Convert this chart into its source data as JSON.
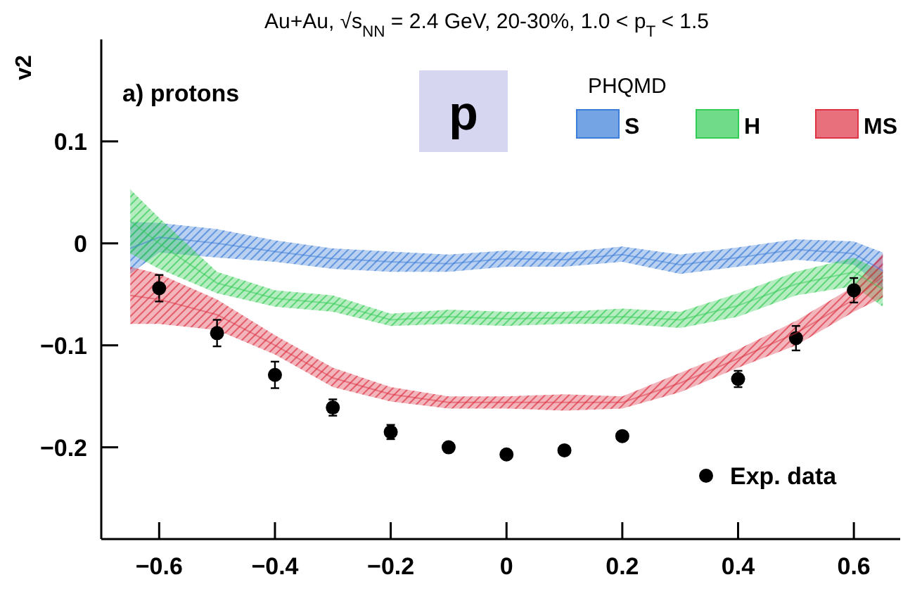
{
  "chart_data": {
    "type": "line",
    "title": "Au+Au, √s$_{NN}$ = 2.4 GeV, 20-30%, 1.0 < p$_{T}$ < 1.5",
    "ylabel": "v2",
    "legend_title": "PHQMD",
    "legend": "right",
    "annotations": [
      "a) protons",
      "p"
    ],
    "xlim": [
      -0.7,
      0.68
    ],
    "ylim": [
      -0.29,
      0.2
    ],
    "xticks": [
      {
        "value": -0.6,
        "label": "−0.6"
      },
      {
        "value": -0.4,
        "label": "−0.4"
      },
      {
        "value": -0.2,
        "label": "−0.2"
      },
      0,
      0.2,
      0.4,
      0.6
    ],
    "yticks": [
      {
        "value": -0.2,
        "label": "−0.2"
      },
      {
        "value": -0.1,
        "label": "−0.1"
      },
      0,
      0.1
    ],
    "series": [
      {
        "name": "S",
        "color": "#3b7dd8",
        "x": [
          -0.65,
          -0.6,
          -0.5,
          -0.4,
          -0.3,
          -0.2,
          -0.1,
          0,
          0.1,
          0.2,
          0.3,
          0.4,
          0.5,
          0.6,
          0.65
        ],
        "values": [
          -0.005,
          0.006,
          0,
          -0.008,
          -0.015,
          -0.018,
          -0.02,
          -0.015,
          -0.016,
          -0.011,
          -0.021,
          -0.014,
          -0.006,
          -0.01,
          -0.027
        ],
        "lower": [
          -0.03,
          -0.009,
          -0.014,
          -0.018,
          -0.025,
          -0.028,
          -0.028,
          -0.023,
          -0.023,
          -0.018,
          -0.03,
          -0.023,
          -0.016,
          -0.021,
          -0.044
        ],
        "upper": [
          0.021,
          0.02,
          0.014,
          0.003,
          -0.005,
          -0.008,
          -0.011,
          -0.007,
          -0.009,
          -0.003,
          -0.011,
          -0.004,
          0.004,
          0.002,
          -0.009
        ]
      },
      {
        "name": "H",
        "color": "#33cc55",
        "x": [
          -0.65,
          -0.6,
          -0.5,
          -0.4,
          -0.3,
          -0.2,
          -0.1,
          0,
          0.1,
          0.2,
          0.3,
          0.4,
          0.5,
          0.6,
          0.65
        ],
        "values": [
          0.022,
          0,
          -0.039,
          -0.054,
          -0.059,
          -0.075,
          -0.072,
          -0.074,
          -0.073,
          -0.072,
          -0.075,
          -0.061,
          -0.04,
          -0.028,
          -0.045
        ],
        "lower": [
          -0.01,
          -0.025,
          -0.049,
          -0.062,
          -0.067,
          -0.081,
          -0.079,
          -0.081,
          -0.079,
          -0.079,
          -0.083,
          -0.072,
          -0.051,
          -0.042,
          -0.062
        ],
        "upper": [
          0.053,
          0.025,
          -0.028,
          -0.046,
          -0.051,
          -0.069,
          -0.065,
          -0.067,
          -0.067,
          -0.064,
          -0.067,
          -0.049,
          -0.028,
          -0.014,
          -0.028
        ]
      },
      {
        "name": "MS",
        "color": "#dd3344",
        "x": [
          -0.65,
          -0.6,
          -0.5,
          -0.4,
          -0.3,
          -0.2,
          -0.1,
          0,
          0.1,
          0.2,
          0.3,
          0.4,
          0.5,
          0.6,
          0.65
        ],
        "values": [
          -0.051,
          -0.055,
          -0.07,
          -0.1,
          -0.132,
          -0.148,
          -0.156,
          -0.156,
          -0.156,
          -0.156,
          -0.137,
          -0.113,
          -0.088,
          -0.055,
          -0.032
        ],
        "lower": [
          -0.079,
          -0.079,
          -0.085,
          -0.109,
          -0.141,
          -0.155,
          -0.162,
          -0.162,
          -0.164,
          -0.162,
          -0.146,
          -0.122,
          -0.1,
          -0.067,
          -0.053
        ],
        "upper": [
          -0.023,
          -0.03,
          -0.055,
          -0.09,
          -0.122,
          -0.141,
          -0.15,
          -0.15,
          -0.148,
          -0.15,
          -0.127,
          -0.104,
          -0.076,
          -0.042,
          -0.01
        ]
      },
      {
        "name": "Exp. data",
        "type": "scatter",
        "color": "#000000",
        "marker": "circle",
        "x": [
          -0.6,
          -0.5,
          -0.4,
          -0.3,
          -0.2,
          -0.1,
          0,
          0.1,
          0.2,
          0.4,
          0.5,
          0.6
        ],
        "values": [
          -0.044,
          -0.088,
          -0.129,
          -0.161,
          -0.185,
          -0.2,
          -0.207,
          -0.203,
          -0.189,
          -0.133,
          -0.093,
          -0.046
        ],
        "errors": [
          0.013,
          0.013,
          0.013,
          0.008,
          0.007,
          null,
          null,
          null,
          null,
          0.008,
          0.012,
          0.012
        ]
      }
    ]
  }
}
